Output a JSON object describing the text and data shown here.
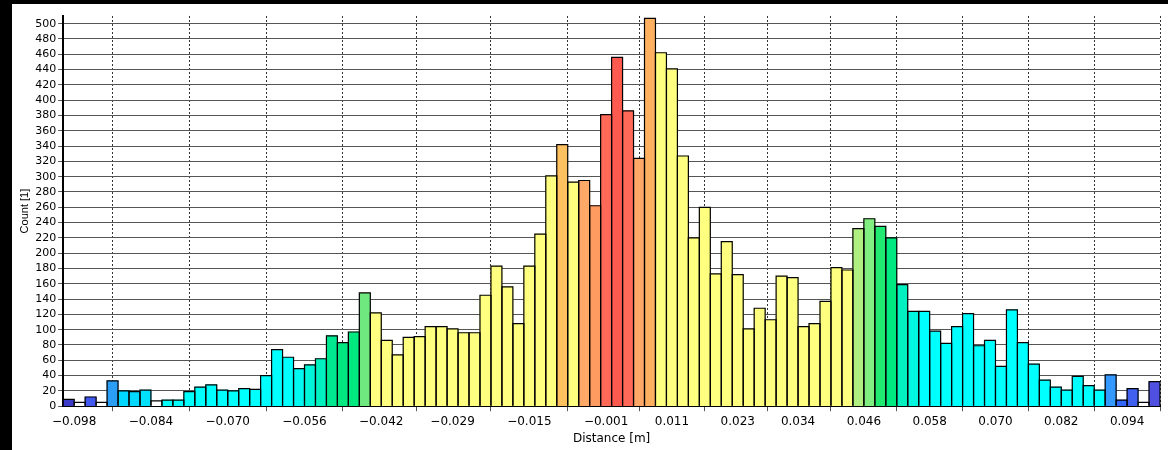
{
  "chart_data": {
    "type": "histogram",
    "xlabel": "Distance [m]",
    "ylabel": "Count [1]",
    "bins": [
      -0.1,
      -0.098,
      -0.096,
      -0.094,
      -0.092,
      -0.09,
      -0.088,
      -0.086,
      -0.084,
      -0.082,
      -0.08,
      -0.078,
      -0.076,
      -0.074,
      -0.072,
      -0.07,
      -0.068,
      -0.066,
      -0.064,
      -0.062,
      -0.06,
      -0.058,
      -0.056,
      -0.054,
      -0.052,
      -0.05,
      -0.048,
      -0.046,
      -0.044,
      -0.042,
      -0.04,
      -0.038,
      -0.036,
      -0.034,
      -0.032,
      -0.03,
      -0.028,
      -0.026,
      -0.024,
      -0.022,
      -0.02,
      -0.018,
      -0.016,
      -0.014,
      -0.012,
      -0.01,
      -0.008,
      -0.006,
      -0.004,
      -0.002,
      0,
      0.002,
      0.004,
      0.006,
      0.008,
      0.01,
      0.012,
      0.014,
      0.016,
      0.018,
      0.02,
      0.022,
      0.024,
      0.026,
      0.028,
      0.03,
      0.032,
      0.034,
      0.036,
      0.038,
      0.04,
      0.042,
      0.044,
      0.046,
      0.048,
      0.05,
      0.052,
      0.054,
      0.056,
      0.058,
      0.06,
      0.062,
      0.064,
      0.066,
      0.068,
      0.07,
      0.072,
      0.074,
      0.076,
      0.078,
      0.08,
      0.082,
      0.084,
      0.086,
      0.088,
      0.09,
      0.092,
      0.094,
      0.096,
      0.098,
      0.1
    ],
    "values": [
      9,
      5,
      12,
      5,
      33,
      20,
      19,
      21,
      7,
      8,
      8,
      19,
      25,
      28,
      21,
      20,
      23,
      22,
      40,
      74,
      64,
      49,
      54,
      62,
      92,
      83,
      97,
      148,
      122,
      86,
      67,
      90,
      91,
      104,
      104,
      101,
      96,
      96,
      145,
      183,
      156,
      108,
      183,
      225,
      301,
      342,
      293,
      295,
      262,
      381,
      456,
      386,
      324,
      507,
      462,
      441,
      327,
      220,
      260,
      173,
      215,
      172,
      101,
      128,
      113,
      170,
      168,
      104,
      108,
      137,
      181,
      178,
      232,
      245,
      235,
      220,
      159,
      124,
      124,
      98,
      82,
      104,
      121,
      79,
      86,
      52,
      126,
      83,
      55,
      34,
      25,
      21,
      39,
      27,
      21,
      41,
      8,
      23,
      5,
      32
    ],
    "colors": [
      "#3c3cc8",
      "#ffffff",
      "#4058f0",
      "#ffffff",
      "#2a9df4",
      "#00d8ff",
      "#00d8ff",
      "#00e0ff",
      "#ffffff",
      "#00ffff",
      "#00ffff",
      "#00ffff",
      "#00ffff",
      "#00ffff",
      "#00ffff",
      "#00ffff",
      "#00ffff",
      "#00ffff",
      "#00ffff",
      "#00ffff",
      "#00ffff",
      "#00f8f0",
      "#00f4d8",
      "#00f0c0",
      "#00e890",
      "#00e880",
      "#00e880",
      "#70e880",
      "#ffff80",
      "#ffff80",
      "#ffff80",
      "#ffff80",
      "#ffff80",
      "#ffff80",
      "#ffff80",
      "#ffff80",
      "#ffff80",
      "#ffff80",
      "#ffff80",
      "#ffff80",
      "#ffff80",
      "#ffff80",
      "#ffff80",
      "#ffff80",
      "#ffff80",
      "#ffc060",
      "#ffff80",
      "#ffa868",
      "#ff9a60",
      "#ff6a58",
      "#ff5a50",
      "#ff6a58",
      "#ffa868",
      "#ffb060",
      "#ffff80",
      "#ffff80",
      "#ffff80",
      "#ffff80",
      "#ffff80",
      "#ffff80",
      "#ffff80",
      "#ffff80",
      "#ffff80",
      "#ffff80",
      "#ffff80",
      "#ffff80",
      "#ffff80",
      "#ffff80",
      "#ffff80",
      "#ffff80",
      "#ffff80",
      "#ffff80",
      "#b0f080",
      "#80ee80",
      "#20e870",
      "#00e880",
      "#00f0c0",
      "#00f8e0",
      "#00ffff",
      "#00ffff",
      "#00ffff",
      "#00ffff",
      "#00ffff",
      "#00ffff",
      "#00ffff",
      "#00ffff",
      "#00ffff",
      "#00ffff",
      "#00ffff",
      "#00ffff",
      "#00ffff",
      "#00ffff",
      "#00ffff",
      "#00ffff",
      "#00ffff",
      "#3399ff",
      "#3366ff",
      "#4060f0",
      "#ffffff",
      "#5050e0"
    ],
    "xlim": [
      -0.1,
      0.1
    ],
    "ylim": [
      0,
      510
    ],
    "xticks": [
      {
        "value": -0.098,
        "label": "−0.098"
      },
      {
        "value": -0.084,
        "label": "−0.084"
      },
      {
        "value": -0.07,
        "label": "−0.070"
      },
      {
        "value": -0.056,
        "label": "−0.056"
      },
      {
        "value": -0.042,
        "label": "−0.042"
      },
      {
        "value": -0.029,
        "label": "−0.029"
      },
      {
        "value": -0.015,
        "label": "−0.015"
      },
      {
        "value": -0.001,
        "label": "−0.001"
      },
      {
        "value": 0.011,
        "label": "0.011"
      },
      {
        "value": 0.023,
        "label": "0.023"
      },
      {
        "value": 0.034,
        "label": "0.034"
      },
      {
        "value": 0.046,
        "label": "0.046"
      },
      {
        "value": 0.058,
        "label": "0.058"
      },
      {
        "value": 0.07,
        "label": "0.070"
      },
      {
        "value": 0.082,
        "label": "0.082"
      },
      {
        "value": 0.094,
        "label": "0.094"
      }
    ],
    "yticks": [
      0,
      20,
      40,
      60,
      80,
      100,
      120,
      140,
      160,
      180,
      200,
      220,
      240,
      260,
      280,
      300,
      320,
      340,
      360,
      380,
      400,
      420,
      440,
      460,
      480,
      500
    ],
    "grid": true
  }
}
